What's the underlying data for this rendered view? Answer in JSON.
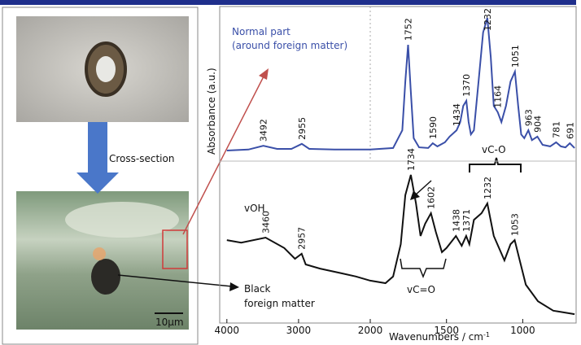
{
  "left_panel": {
    "arrow_label": "Cross-section",
    "scale_bar": "10μm"
  },
  "annotations": {
    "normal_part": "Normal part",
    "normal_part_detail": "(around foreign matter)",
    "foreign_1": "Black",
    "foreign_2": "foreign matter",
    "voh": "vOH",
    "vco_single": "vC-O",
    "vco_double": "vC=O"
  },
  "chart_data": {
    "type": "line",
    "ylabel": "Absorbance (a.u.)",
    "xlabel": "Wavenumbers / cm",
    "xlabel_sup": "-1",
    "xlim": [
      4100,
      650
    ],
    "x_break": 2000,
    "ylim": [
      0,
      100
    ],
    "xticks": [
      4000,
      3000,
      2000,
      1500,
      1000
    ],
    "series": [
      {
        "color": "#3a4fa8",
        "x": [
          4000,
          3700,
          3492,
          3300,
          3100,
          2955,
          2850,
          2500,
          2200,
          2000,
          1850,
          1790,
          1770,
          1752,
          1735,
          1715,
          1680,
          1620,
          1590,
          1560,
          1510,
          1480,
          1434,
          1410,
          1390,
          1370,
          1355,
          1340,
          1320,
          1290,
          1260,
          1232,
          1210,
          1190,
          1164,
          1140,
          1110,
          1080,
          1051,
          1030,
          1010,
          990,
          963,
          940,
          904,
          870,
          820,
          781,
          750,
          720,
          691,
          660
        ],
        "values": [
          54.5,
          54.8,
          56.0,
          55.0,
          55.0,
          56.6,
          55.0,
          54.8,
          54.8,
          54.8,
          55.3,
          60.9,
          76.3,
          87.9,
          73.8,
          58.4,
          55.5,
          55.3,
          56.8,
          55.8,
          57.1,
          58.9,
          60.9,
          63.5,
          68.6,
          70.2,
          63.5,
          59.6,
          60.9,
          76.3,
          91.8,
          96.4,
          84.1,
          68.6,
          66.6,
          63.5,
          68.6,
          76.3,
          79.4,
          68.6,
          59.6,
          58.4,
          60.9,
          57.8,
          58.9,
          56.3,
          55.8,
          57.1,
          55.8,
          55.5,
          56.8,
          55.3
        ],
        "peak_labels": [
          3492,
          2955,
          1752,
          1590,
          1434,
          1370,
          1232,
          1164,
          1051,
          963,
          904,
          781,
          691
        ]
      },
      {
        "color": "#111111",
        "x": [
          4000,
          3800,
          3460,
          3200,
          3050,
          2957,
          2900,
          2700,
          2400,
          2200,
          2000,
          1900,
          1850,
          1800,
          1770,
          1734,
          1700,
          1670,
          1640,
          1602,
          1570,
          1530,
          1500,
          1438,
          1400,
          1371,
          1350,
          1320,
          1270,
          1232,
          1190,
          1120,
          1080,
          1053,
          1020,
          980,
          900,
          800,
          700,
          660
        ],
        "values": [
          26.2,
          25.4,
          27.0,
          23.7,
          20.3,
          21.9,
          18.5,
          17.2,
          15.7,
          14.7,
          13.4,
          12.6,
          14.7,
          24.9,
          40.4,
          46.8,
          37.8,
          27.5,
          31.4,
          34.7,
          28.8,
          22.4,
          23.7,
          27.5,
          24.4,
          27.5,
          24.9,
          32.6,
          34.7,
          37.8,
          27.5,
          19.8,
          24.9,
          26.2,
          19.8,
          12.1,
          6.9,
          3.9,
          3.1,
          2.8
        ],
        "peak_labels": [
          3460,
          2957,
          1734,
          1602,
          1438,
          1371,
          1232,
          1053
        ]
      }
    ]
  }
}
